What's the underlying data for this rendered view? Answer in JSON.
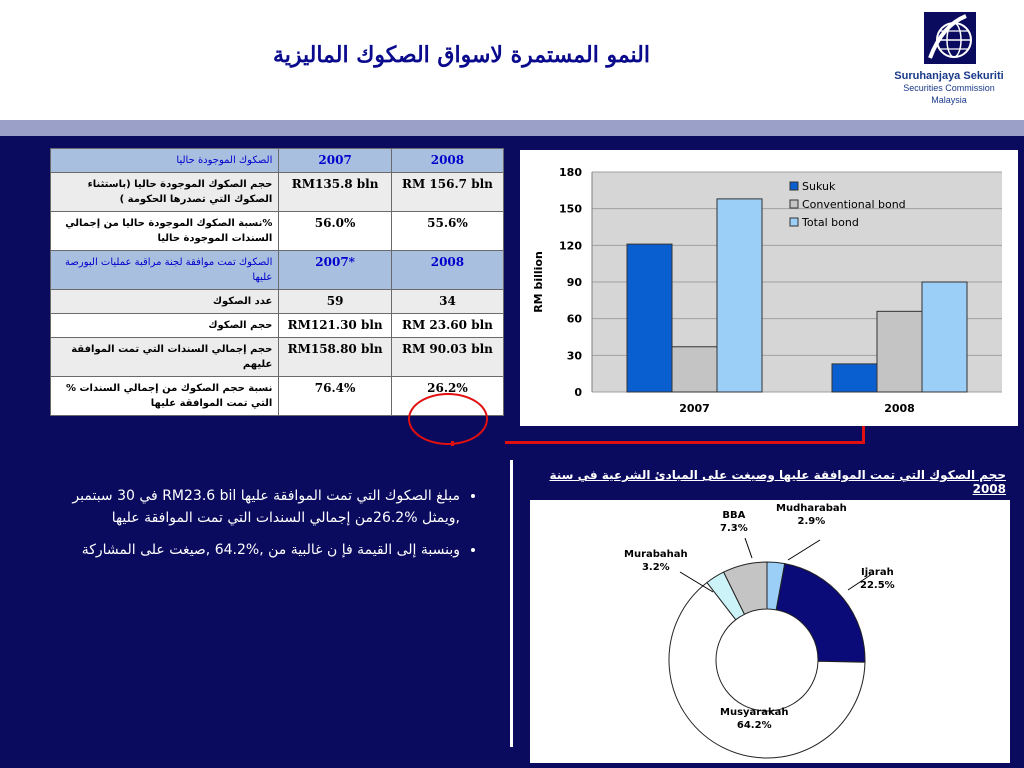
{
  "header": {
    "title": "النمو المستمرة لاسواق الصكوك الماليزية",
    "logo": {
      "name": "Suruhanjaya Sekuriti",
      "sub1": "Securities Commission",
      "sub2": "Malaysia"
    }
  },
  "table": {
    "rows": [
      {
        "label": "الصكوك الموجودة حاليا",
        "c1": "2007",
        "c2": "2008",
        "style": "hdr"
      },
      {
        "label": "حجم الصكوك الموجودة حاليا (باستثناء الصكوك التي تصدرها الحكومة )",
        "c1": "RM135.8 bln",
        "c2": "RM 156.7 bln",
        "style": "odd"
      },
      {
        "label": "%نسبة الصكوك الموجودة حاليا من إجمالي السندات الموجودة حاليا",
        "c1": "56.0%",
        "c2": "55.6%",
        "style": "even"
      },
      {
        "label": "الصكوك تمت موافقة لجنة مراقبة عمليات البورصة عليها",
        "c1": "2007*",
        "c2": "2008",
        "style": "hdr"
      },
      {
        "label": "عدد الصكوك",
        "c1": "59",
        "c2": "34",
        "style": "odd"
      },
      {
        "label": "حجم الصكوك",
        "c1": "RM121.30 bln",
        "c2": "RM 23.60 bln",
        "style": "even"
      },
      {
        "label": "حجم إجمالي السندات التي تمت الموافقة عليهم",
        "c1": "RM158.80 bln",
        "c2": "RM 90.03 bln",
        "style": "odd"
      },
      {
        "label": "نسبة حجم الصكوك من إجمالي السندات % التي تمت الموافقة عليها",
        "c1": "76.4%",
        "c2": "26.2%",
        "style": "even"
      }
    ]
  },
  "chart_data": [
    {
      "type": "bar",
      "categories": [
        "2007",
        "2008"
      ],
      "series": [
        {
          "name": "Sukuk",
          "values": [
            121,
            23
          ],
          "color": "#0a5fd0"
        },
        {
          "name": "Conventional bond",
          "values": [
            37,
            66
          ],
          "color": "#c4c4c4"
        },
        {
          "name": "Total bond",
          "values": [
            158,
            90
          ],
          "color": "#9ccff8"
        }
      ],
      "yticks": [
        "180",
        "150",
        "120",
        "90",
        "60",
        "30",
        "0"
      ],
      "ylabel": "RM billion",
      "ylim": [
        0,
        180
      ],
      "legend": "top-right",
      "grid": true
    },
    {
      "type": "pie",
      "title": "حجم الصكوك التي تمت الموافقة عليها وصيغت على المبادئ الشرعية في سنة 2008",
      "slices": [
        {
          "label": "Mudharabah",
          "pct": "2.9%",
          "value": 2.9,
          "color": "#9ccff8"
        },
        {
          "label": "Ijarah",
          "pct": "22.5%",
          "value": 22.5,
          "color": "#0a0a78"
        },
        {
          "label": "Musyarakah",
          "pct": "64.2%",
          "value": 64.2,
          "color": "#ffffff"
        },
        {
          "label": "Murabahah",
          "pct": "3.2%",
          "value": 3.2,
          "color": "#ccf4f8"
        },
        {
          "label": "BBA",
          "pct": "7.3%",
          "value": 7.3,
          "color": "#c4c4c4"
        }
      ]
    }
  ],
  "bullets": [
    "مبلغ الصكوك التي تمت الموافقة عليها  RM23.6 bil في  30 سبتمبر   ,ويمثل  %26.2من إجمالي السندات التي تمت الموافقة عليها",
    "وبنسبة إلى القيمة فإ ن غالبية من  ,%64.2 ,صيغت على المشاركة"
  ]
}
